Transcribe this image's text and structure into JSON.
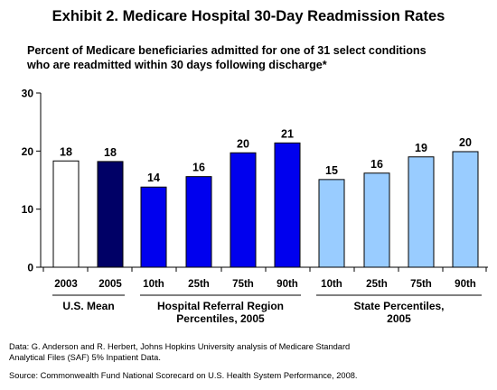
{
  "title": "Exhibit 2. Medicare Hospital 30-Day Readmission Rates",
  "subtitle": "Percent of Medicare beneficiaries admitted for one of 31 select conditions\nwho are readmitted within 30 days following discharge*",
  "footnotes": {
    "data_note": "Data: G. Anderson and R. Herbert, Johns Hopkins University analysis of Medicare Standard\nAnalytical Files (SAF) 5% Inpatient Data.",
    "source": "Source: Commonwealth Fund National Scorecard on U.S. Health System Performance, 2008."
  },
  "colors": {
    "white_bar": "#ffffff",
    "navy_bar": "#000066",
    "blue_bar": "#0000ee",
    "light_blue_bar": "#99ccff"
  },
  "chart_data": {
    "type": "bar",
    "ylim": [
      0,
      30
    ],
    "yticks": [
      0,
      10,
      20,
      30
    ],
    "grid": false,
    "categories": [
      "2003",
      "2005",
      "10th",
      "25th",
      "75th",
      "90th",
      "10th",
      "25th",
      "75th",
      "90th"
    ],
    "values": [
      18.3,
      18.2,
      13.8,
      15.6,
      19.7,
      21.4,
      15.1,
      16.2,
      19.0,
      19.9
    ],
    "data_labels": [
      "18",
      "18",
      "14",
      "16",
      "20",
      "21",
      "15",
      "16",
      "19",
      "20"
    ],
    "bar_colors": [
      "#ffffff",
      "#000066",
      "#0000ee",
      "#0000ee",
      "#0000ee",
      "#0000ee",
      "#99ccff",
      "#99ccff",
      "#99ccff",
      "#99ccff"
    ],
    "groups": [
      {
        "label": "U.S. Mean",
        "span": [
          0,
          1
        ]
      },
      {
        "label": "Hospital Referral Region\nPercentiles, 2005",
        "span": [
          2,
          5
        ]
      },
      {
        "label": "State Percentiles,\n2005",
        "span": [
          6,
          9
        ]
      }
    ]
  }
}
